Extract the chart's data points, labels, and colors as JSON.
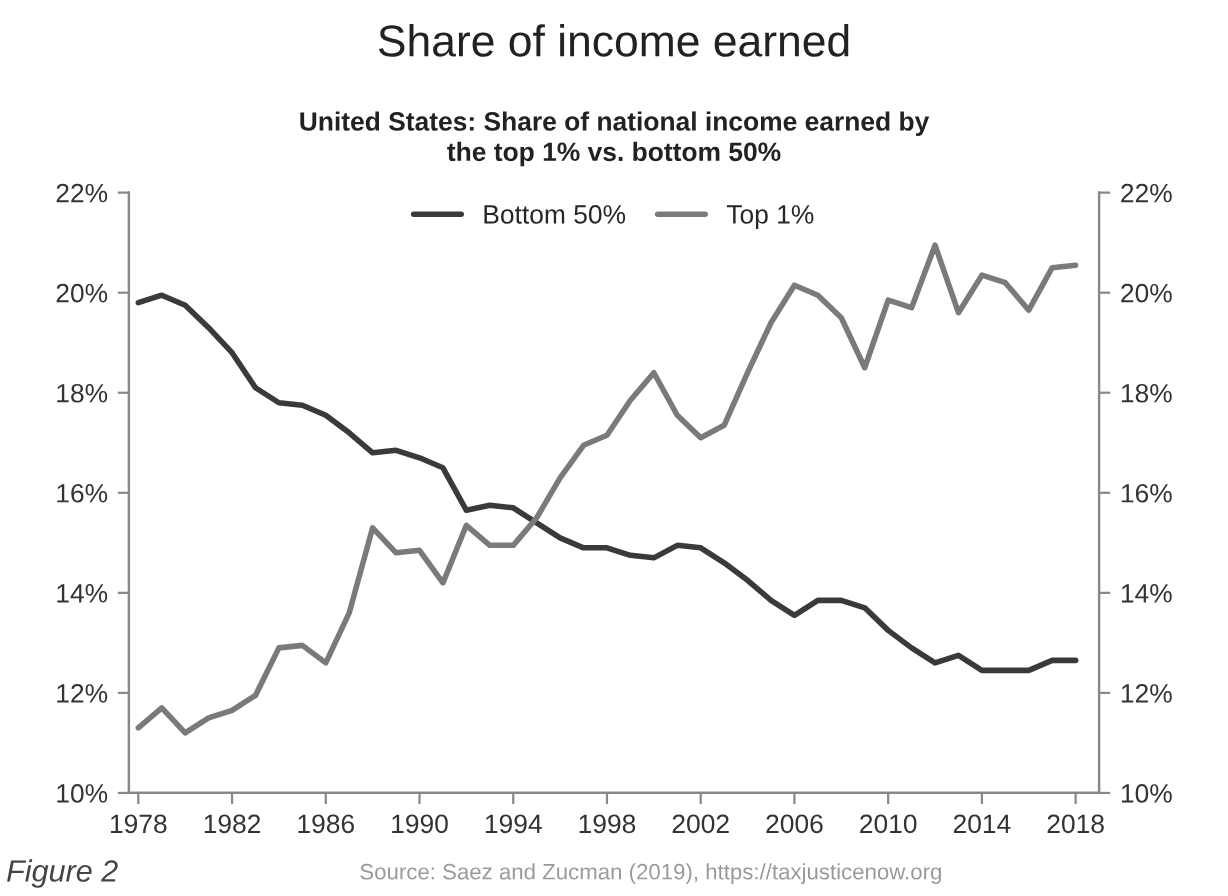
{
  "chart_data": {
    "type": "line",
    "title": "Share of income earned",
    "subtitle": "United States: Share of national income earned by\nthe top 1% vs. bottom 50%",
    "x": [
      1978,
      1979,
      1980,
      1981,
      1982,
      1983,
      1984,
      1985,
      1986,
      1987,
      1988,
      1989,
      1990,
      1991,
      1992,
      1993,
      1994,
      1995,
      1996,
      1997,
      1998,
      1999,
      2000,
      2001,
      2002,
      2003,
      2004,
      2005,
      2006,
      2007,
      2008,
      2009,
      2010,
      2011,
      2012,
      2013,
      2014,
      2015,
      2016,
      2017,
      2018
    ],
    "series": [
      {
        "name": "Bottom 50%",
        "color": "#3a3a3a",
        "values": [
          19.8,
          19.95,
          19.75,
          19.3,
          18.8,
          18.1,
          17.8,
          17.75,
          17.55,
          17.2,
          16.8,
          16.85,
          16.7,
          16.5,
          15.65,
          15.75,
          15.7,
          15.4,
          15.1,
          14.9,
          14.9,
          14.75,
          14.7,
          14.95,
          14.9,
          14.6,
          14.25,
          13.85,
          13.55,
          13.85,
          13.85,
          13.7,
          13.25,
          12.9,
          12.6,
          12.75,
          12.45,
          12.45,
          12.45,
          12.65,
          12.65
        ]
      },
      {
        "name": "Top 1%",
        "color": "#7a7a7a",
        "values": [
          11.3,
          11.7,
          11.2,
          11.5,
          11.65,
          11.95,
          12.9,
          12.95,
          12.6,
          13.6,
          15.3,
          14.8,
          14.85,
          14.2,
          15.35,
          14.95,
          14.95,
          15.5,
          16.3,
          16.95,
          17.15,
          17.85,
          18.4,
          17.55,
          17.1,
          17.35,
          18.4,
          19.4,
          20.15,
          19.95,
          19.5,
          18.5,
          19.85,
          19.7,
          20.95,
          19.6,
          20.35,
          20.2,
          19.65,
          20.5,
          20.55
        ]
      }
    ],
    "xlim": [
      1977.6,
      2019
    ],
    "xticks": [
      1978,
      1982,
      1986,
      1990,
      1994,
      1998,
      2002,
      2006,
      2010,
      2014,
      2018
    ],
    "ylim": [
      10,
      22
    ],
    "yticks": [
      {
        "value": 10,
        "label": "10%"
      },
      {
        "value": 12,
        "label": "12%"
      },
      {
        "value": 14,
        "label": "14%"
      },
      {
        "value": 16,
        "label": "16%"
      },
      {
        "value": 18,
        "label": "18%"
      },
      {
        "value": 20,
        "label": "20%"
      },
      {
        "value": 22,
        "label": "22%"
      }
    ],
    "y2lim": [
      10,
      22
    ],
    "y2ticks": [
      {
        "value": 10,
        "label": "10%"
      },
      {
        "value": 12,
        "label": "12%"
      },
      {
        "value": 14,
        "label": "14%"
      },
      {
        "value": 16,
        "label": "16%"
      },
      {
        "value": 18,
        "label": "18%"
      },
      {
        "value": 20,
        "label": "20%"
      },
      {
        "value": 22,
        "label": "22%"
      }
    ],
    "legend": "top",
    "grid": false,
    "marker": "none",
    "line_style": "solid",
    "annotations": [
      "Figure 2",
      "Source: Saez and Zucman (2019), https://taxjusticenow.org"
    ]
  }
}
